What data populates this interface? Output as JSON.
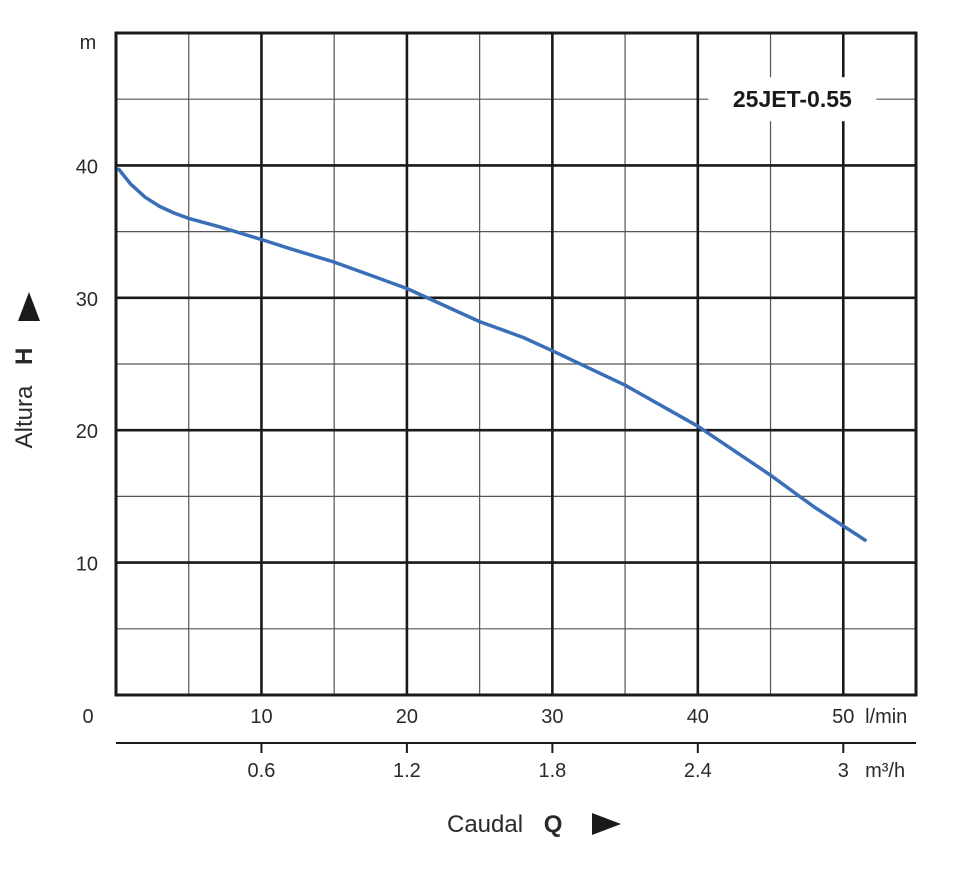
{
  "chart_data": {
    "type": "line",
    "model_label": "25JET-0.55",
    "y_axis": {
      "unit": "m",
      "label": "Altura",
      "symbol": "H",
      "range": [
        0,
        50
      ],
      "ticks": [
        10,
        20,
        30,
        40
      ]
    },
    "x_axis": {
      "label": "Caudal",
      "symbol": "Q",
      "origin_label": "0",
      "primary": {
        "unit": "l/min",
        "range": [
          0,
          55
        ],
        "ticks": [
          10,
          20,
          30,
          40,
          50
        ]
      },
      "secondary": {
        "unit": "m³/h",
        "ticks": [
          "0.6",
          "1.2",
          "1.8",
          "2.4",
          "3"
        ]
      }
    },
    "grid": true,
    "colors": {
      "curve": "#3a6fb8",
      "grid_major": "#1a1a1a",
      "grid_minor": "#555555"
    },
    "series": [
      {
        "x": [
          0.2,
          1,
          2,
          3,
          4,
          5,
          7,
          10,
          12,
          15,
          18,
          20,
          25,
          28,
          30,
          35,
          40,
          45,
          48,
          51.5
        ],
        "y": [
          39.7,
          38.6,
          37.6,
          36.9,
          36.4,
          36.0,
          35.4,
          34.4,
          33.7,
          32.7,
          31.5,
          30.7,
          28.2,
          27.0,
          26.0,
          23.4,
          20.3,
          16.6,
          14.2,
          11.7
        ]
      }
    ]
  }
}
